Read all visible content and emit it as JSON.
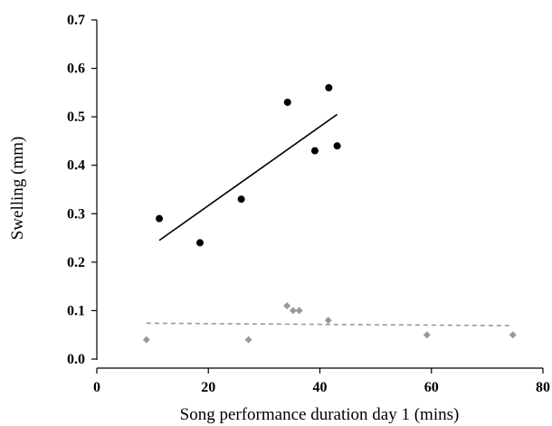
{
  "chart_data": {
    "type": "scatter",
    "xlabel": "Song performance duration day 1 (mins)",
    "ylabel": "Swelling (mm)",
    "xlim": [
      0,
      80
    ],
    "ylim": [
      0,
      0.7
    ],
    "x_ticks": [
      {
        "value": 0,
        "label": "0"
      },
      {
        "value": 20,
        "label": "20"
      },
      {
        "value": 40,
        "label": "40"
      },
      {
        "value": 60,
        "label": "60"
      },
      {
        "value": 80,
        "label": "80"
      }
    ],
    "y_ticks": [
      {
        "value": 0,
        "label": "0.0"
      },
      {
        "value": 0.1,
        "label": "0.1"
      },
      {
        "value": 0.2,
        "label": "0.2"
      },
      {
        "value": 0.3,
        "label": "0.3"
      },
      {
        "value": 0.4,
        "label": "0.4"
      },
      {
        "value": 0.5,
        "label": "0.5"
      },
      {
        "value": 0.6,
        "label": "0.6"
      },
      {
        "value": 0.7,
        "label": "0.7"
      }
    ],
    "grid": false,
    "series": [
      {
        "marker": "circle",
        "color": "#000000",
        "points": [
          {
            "x": 11.2,
            "y": 0.29
          },
          {
            "x": 18.5,
            "y": 0.24
          },
          {
            "x": 25.9,
            "y": 0.33
          },
          {
            "x": 34.2,
            "y": 0.53
          },
          {
            "x": 39.1,
            "y": 0.43
          },
          {
            "x": 41.6,
            "y": 0.56
          },
          {
            "x": 43.1,
            "y": 0.44
          }
        ],
        "trendline": {
          "style": "solid",
          "color": "#000000",
          "x": [
            11.2,
            43.1
          ],
          "y": [
            0.245,
            0.505
          ]
        }
      },
      {
        "marker": "diamond",
        "color": "#999999",
        "points": [
          {
            "x": 8.9,
            "y": 0.04
          },
          {
            "x": 27.2,
            "y": 0.04
          },
          {
            "x": 34.1,
            "y": 0.11
          },
          {
            "x": 35.2,
            "y": 0.1
          },
          {
            "x": 36.3,
            "y": 0.1
          },
          {
            "x": 41.5,
            "y": 0.08
          },
          {
            "x": 59.2,
            "y": 0.05
          },
          {
            "x": 74.6,
            "y": 0.05
          }
        ],
        "trendline": {
          "style": "dashed",
          "color": "#999999",
          "x": [
            8.9,
            74.6
          ],
          "y": [
            0.074,
            0.069
          ]
        }
      }
    ]
  }
}
